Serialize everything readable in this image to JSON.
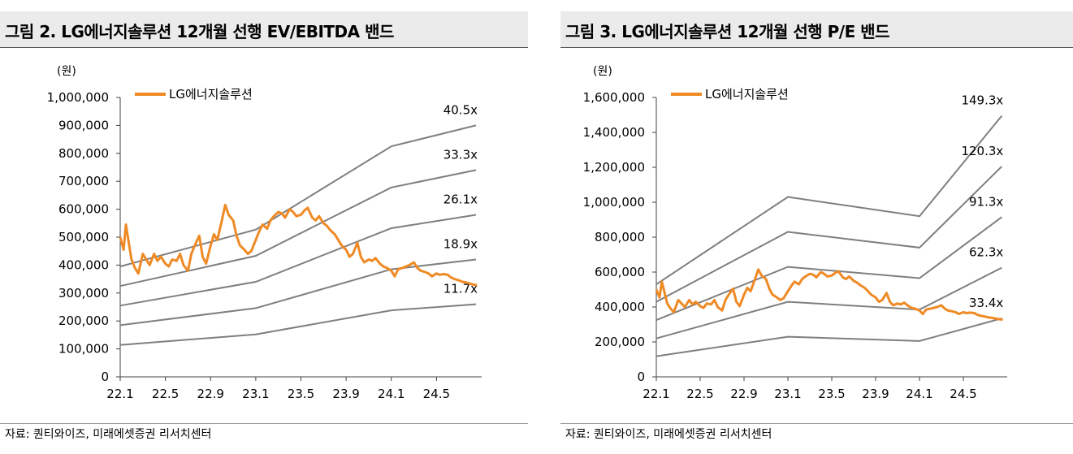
{
  "colors": {
    "price": "#ef8a25",
    "band": "#7f7f7f",
    "axis": "#404040"
  },
  "chart_data": [
    {
      "type": "line",
      "title": "그림 2. LG에너지솔루션 12개월 선행 EV/EBITDA 밴드",
      "ylabel": "(원)",
      "xlabel": "",
      "source": "자료: 퀀티와이즈, 미래에셋증권 리서치센터",
      "ylim": [
        0,
        1000000
      ],
      "yticks": [
        "0",
        "100,000",
        "200,000",
        "300,000",
        "400,000",
        "500,000",
        "600,000",
        "700,000",
        "800,000",
        "900,000",
        "1,000,000"
      ],
      "xlim": [
        0,
        32
      ],
      "xtick_labels": [
        "22.1",
        "22.5",
        "22.9",
        "23.1",
        "23.5",
        "23.9",
        "24.1",
        "24.5"
      ],
      "xtick_positions": [
        0,
        4,
        8,
        12,
        16,
        20,
        24,
        28
      ],
      "legend": "LG에너지솔루션",
      "bands": [
        {
          "name": "40.5x",
          "x": [
            0,
            12,
            24,
            31.5
          ],
          "y": [
            395000,
            527000,
            825000,
            900000
          ]
        },
        {
          "name": "33.3x",
          "x": [
            0,
            12,
            24,
            31.5
          ],
          "y": [
            325000,
            433000,
            678000,
            740000
          ]
        },
        {
          "name": "26.1x",
          "x": [
            0,
            12,
            24,
            31.5
          ],
          "y": [
            255000,
            340000,
            532000,
            580000
          ]
        },
        {
          "name": "18.9x",
          "x": [
            0,
            12,
            24,
            31.5
          ],
          "y": [
            185000,
            246000,
            385000,
            420000
          ]
        },
        {
          "name": "11.7x",
          "x": [
            0,
            12,
            24,
            31.5
          ],
          "y": [
            114000,
            152000,
            238000,
            260000
          ]
        }
      ],
      "series": [
        {
          "name": "LG에너지솔루션",
          "x": [
            0,
            0.3,
            0.5,
            0.8,
            1.0,
            1.3,
            1.6,
            2.0,
            2.3,
            2.6,
            3.0,
            3.3,
            3.6,
            4.0,
            4.3,
            4.6,
            5.0,
            5.3,
            5.6,
            6.0,
            6.3,
            6.6,
            7.0,
            7.3,
            7.6,
            8.0,
            8.3,
            8.6,
            9.0,
            9.3,
            9.6,
            10.0,
            10.3,
            10.6,
            11.0,
            11.3,
            11.6,
            12.0,
            12.3,
            12.6,
            13.0,
            13.3,
            13.6,
            14.0,
            14.3,
            14.6,
            15.0,
            15.3,
            15.6,
            16.0,
            16.3,
            16.6,
            17.0,
            17.3,
            17.6,
            18.0,
            18.3,
            18.6,
            19.0,
            19.3,
            19.6,
            20.0,
            20.3,
            20.6,
            21.0,
            21.3,
            21.6,
            22.0,
            22.3,
            22.6,
            23.0,
            23.3,
            23.6,
            24.0,
            24.3,
            24.6,
            25.0,
            25.3,
            25.6,
            26.0,
            26.3,
            26.6,
            27.0,
            27.3,
            27.6,
            28.0,
            28.3,
            28.6,
            29.0,
            29.3,
            29.6,
            30.0,
            30.3,
            30.6,
            31.0,
            31.3,
            31.6
          ],
          "y": [
            500000,
            455000,
            545000,
            470000,
            420000,
            390000,
            370000,
            440000,
            420000,
            400000,
            440000,
            415000,
            430000,
            405000,
            395000,
            420000,
            415000,
            440000,
            400000,
            380000,
            440000,
            470000,
            505000,
            430000,
            405000,
            470000,
            510000,
            490000,
            560000,
            615000,
            580000,
            560000,
            505000,
            470000,
            455000,
            440000,
            450000,
            490000,
            520000,
            545000,
            530000,
            560000,
            575000,
            590000,
            585000,
            570000,
            600000,
            590000,
            575000,
            580000,
            595000,
            605000,
            570000,
            560000,
            575000,
            550000,
            540000,
            525000,
            510000,
            490000,
            470000,
            455000,
            430000,
            440000,
            480000,
            430000,
            410000,
            420000,
            415000,
            425000,
            405000,
            395000,
            390000,
            380000,
            360000,
            385000,
            390000,
            395000,
            400000,
            410000,
            390000,
            380000,
            375000,
            370000,
            360000,
            370000,
            365000,
            368000,
            365000,
            355000,
            350000,
            345000,
            340000,
            338000,
            333000,
            330000,
            328000
          ]
        }
      ]
    },
    {
      "type": "line",
      "title": "그림 3. LG에너지솔루션 12개월 선행 P/E 밴드",
      "ylabel": "(원)",
      "xlabel": "",
      "source": "자료: 퀀티와이즈, 미래에셋증권 리서치센터",
      "ylim": [
        0,
        1600000
      ],
      "yticks": [
        "0",
        "200,000",
        "400,000",
        "600,000",
        "800,000",
        "1,000,000",
        "1,200,000",
        "1,400,000",
        "1,600,000"
      ],
      "xlim": [
        0,
        32
      ],
      "xtick_labels": [
        "22.1",
        "22.5",
        "22.9",
        "23.1",
        "23.5",
        "23.9",
        "24.1",
        "24.5"
      ],
      "xtick_positions": [
        0,
        4,
        8,
        12,
        16,
        20,
        24,
        28
      ],
      "legend": "LG에너지솔루션",
      "bands": [
        {
          "name": "149.3x",
          "x": [
            0,
            12,
            24,
            31.5
          ],
          "y": [
            530000,
            1030000,
            920000,
            1495000
          ]
        },
        {
          "name": "120.3x",
          "x": [
            0,
            12,
            24,
            31.5
          ],
          "y": [
            430000,
            830000,
            740000,
            1205000
          ]
        },
        {
          "name": "91.3x",
          "x": [
            0,
            12,
            24,
            31.5
          ],
          "y": [
            325000,
            630000,
            565000,
            915000
          ]
        },
        {
          "name": "62.3x",
          "x": [
            0,
            12,
            24,
            31.5
          ],
          "y": [
            220000,
            430000,
            385000,
            625000
          ]
        },
        {
          "name": "33.4x",
          "x": [
            0,
            12,
            24,
            31.5
          ],
          "y": [
            118000,
            230000,
            205000,
            335000
          ]
        }
      ],
      "series": [
        {
          "name": "LG에너지솔루션",
          "x": [
            0,
            0.3,
            0.5,
            0.8,
            1.0,
            1.3,
            1.6,
            2.0,
            2.3,
            2.6,
            3.0,
            3.3,
            3.6,
            4.0,
            4.3,
            4.6,
            5.0,
            5.3,
            5.6,
            6.0,
            6.3,
            6.6,
            7.0,
            7.3,
            7.6,
            8.0,
            8.3,
            8.6,
            9.0,
            9.3,
            9.6,
            10.0,
            10.3,
            10.6,
            11.0,
            11.3,
            11.6,
            12.0,
            12.3,
            12.6,
            13.0,
            13.3,
            13.6,
            14.0,
            14.3,
            14.6,
            15.0,
            15.3,
            15.6,
            16.0,
            16.3,
            16.6,
            17.0,
            17.3,
            17.6,
            18.0,
            18.3,
            18.6,
            19.0,
            19.3,
            19.6,
            20.0,
            20.3,
            20.6,
            21.0,
            21.3,
            21.6,
            22.0,
            22.3,
            22.6,
            23.0,
            23.3,
            23.6,
            24.0,
            24.3,
            24.6,
            25.0,
            25.3,
            25.6,
            26.0,
            26.3,
            26.6,
            27.0,
            27.3,
            27.6,
            28.0,
            28.3,
            28.6,
            29.0,
            29.3,
            29.6,
            30.0,
            30.3,
            30.6,
            31.0,
            31.3,
            31.6
          ],
          "y": [
            500000,
            455000,
            545000,
            470000,
            420000,
            390000,
            370000,
            440000,
            420000,
            400000,
            440000,
            415000,
            430000,
            405000,
            395000,
            420000,
            415000,
            440000,
            400000,
            380000,
            440000,
            470000,
            505000,
            430000,
            405000,
            470000,
            510000,
            490000,
            560000,
            615000,
            580000,
            560000,
            505000,
            470000,
            455000,
            440000,
            450000,
            490000,
            520000,
            545000,
            530000,
            560000,
            575000,
            590000,
            585000,
            570000,
            600000,
            590000,
            575000,
            580000,
            595000,
            605000,
            570000,
            560000,
            575000,
            550000,
            540000,
            525000,
            510000,
            490000,
            470000,
            455000,
            430000,
            440000,
            480000,
            430000,
            410000,
            420000,
            415000,
            425000,
            405000,
            395000,
            390000,
            380000,
            360000,
            385000,
            390000,
            395000,
            400000,
            410000,
            390000,
            380000,
            375000,
            370000,
            360000,
            370000,
            365000,
            368000,
            365000,
            355000,
            350000,
            345000,
            340000,
            338000,
            333000,
            330000,
            328000
          ]
        }
      ]
    }
  ]
}
